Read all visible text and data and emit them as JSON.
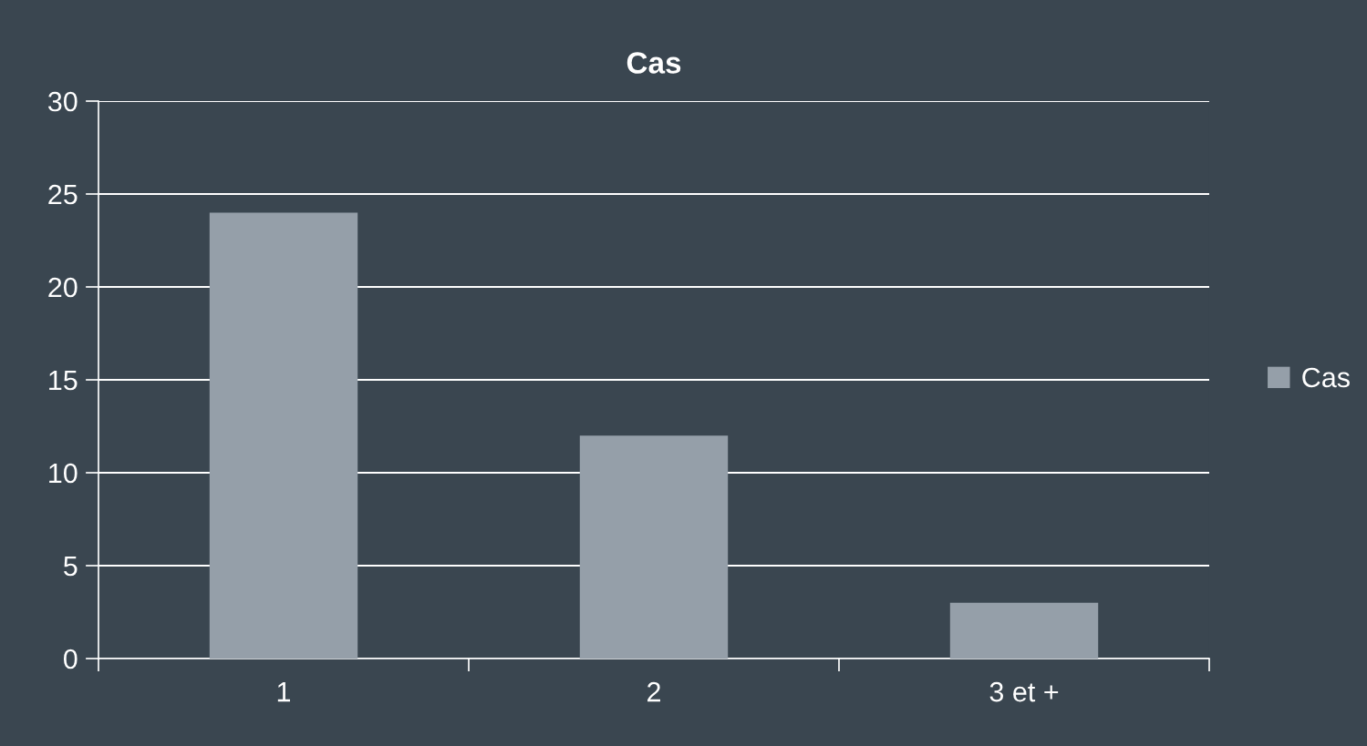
{
  "chart_data": {
    "type": "bar",
    "title": "Cas",
    "categories": [
      "1",
      "2",
      "3 et +"
    ],
    "series": [
      {
        "name": "Cas",
        "color": "#959fa9",
        "values": [
          24,
          12,
          3
        ]
      }
    ],
    "ylim": [
      0,
      30
    ],
    "yticks": [
      0,
      5,
      10,
      15,
      20,
      25,
      30
    ],
    "grid": "y",
    "legend": "right"
  }
}
